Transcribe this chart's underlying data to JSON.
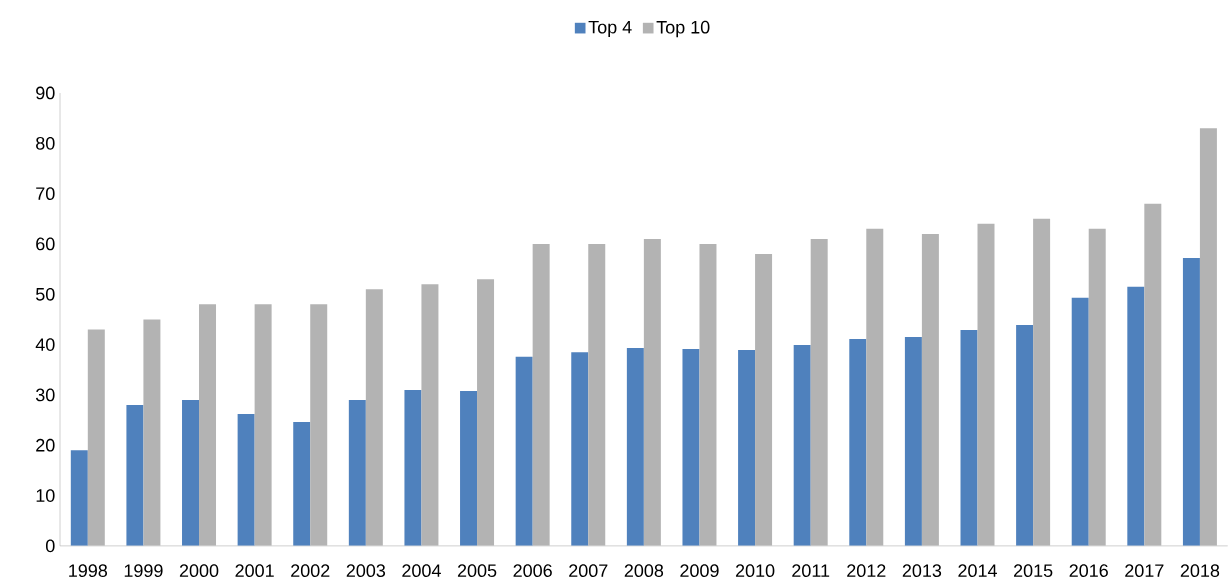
{
  "chart_data": {
    "type": "bar",
    "categories": [
      "1998",
      "1999",
      "2000",
      "2001",
      "2002",
      "2003",
      "2004",
      "2005",
      "2006",
      "2007",
      "2008",
      "2009",
      "2010",
      "2011",
      "2012",
      "2013",
      "2014",
      "2015",
      "2016",
      "2017",
      "2018"
    ],
    "series": [
      {
        "name": "Top 4",
        "color": "#4f81bd",
        "values": [
          19,
          28,
          29,
          26.2,
          24.6,
          29,
          31,
          30.8,
          37.6,
          38.5,
          39.3,
          39.1,
          38.9,
          39.9,
          41.1,
          41.5,
          42.9,
          43.9,
          49.3,
          51.5,
          57.2
        ]
      },
      {
        "name": "Top 10",
        "color": "#b3b3b3",
        "values": [
          43,
          45,
          48,
          48,
          48,
          51,
          52,
          53,
          60,
          60,
          61,
          60,
          58,
          61,
          63,
          62,
          64,
          65,
          63,
          68,
          83
        ]
      }
    ],
    "ylim": [
      0,
      90
    ],
    "yticks": [
      0,
      10,
      20,
      30,
      40,
      50,
      60,
      70,
      80,
      90
    ],
    "grid": false,
    "legend": "top"
  }
}
